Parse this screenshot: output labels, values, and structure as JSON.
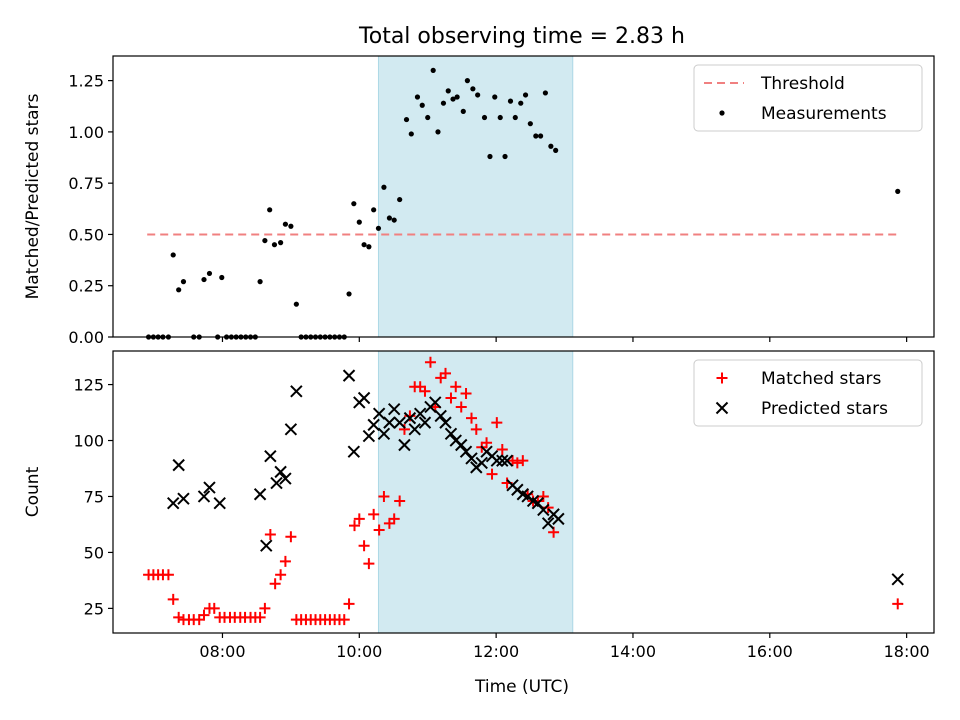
{
  "title": "Total observing time = 2.83 h",
  "chart_data": [
    {
      "type": "scatter",
      "ylabel": "Matched/Predicted stars",
      "ylim": [
        0,
        1.37
      ],
      "xlim": [
        6.4,
        18.4
      ],
      "yticks": [
        0.0,
        0.25,
        0.5,
        0.75,
        1.0,
        1.25
      ],
      "ytick_labels": [
        "0.00",
        "0.25",
        "0.50",
        "0.75",
        "1.00",
        "1.25"
      ],
      "highlight": {
        "x0": 10.28,
        "x1": 13.12,
        "color": "#add8e6"
      },
      "legend": {
        "location": "upper right",
        "entries": [
          "Threshold",
          "Measurements"
        ]
      },
      "threshold": {
        "name": "Threshold",
        "y": 0.5,
        "x0": 6.9,
        "x1": 17.9,
        "color": "#f08080",
        "style": "dashed"
      },
      "series": [
        {
          "name": "Measurements",
          "color": "#000000",
          "marker": "dot",
          "points": [
            [
              6.92,
              0
            ],
            [
              6.99,
              0
            ],
            [
              7.06,
              0
            ],
            [
              7.13,
              0
            ],
            [
              7.21,
              0
            ],
            [
              7.28,
              0.4
            ],
            [
              7.36,
              0.23
            ],
            [
              7.43,
              0.27
            ],
            [
              7.58,
              0
            ],
            [
              7.66,
              0
            ],
            [
              7.73,
              0.28
            ],
            [
              7.81,
              0.31
            ],
            [
              7.93,
              0
            ],
            [
              7.99,
              0.29
            ],
            [
              8.06,
              0
            ],
            [
              8.13,
              0
            ],
            [
              8.2,
              0
            ],
            [
              8.27,
              0
            ],
            [
              8.34,
              0
            ],
            [
              8.41,
              0
            ],
            [
              8.48,
              0
            ],
            [
              8.55,
              0.27
            ],
            [
              8.62,
              0.47
            ],
            [
              8.69,
              0.62
            ],
            [
              8.76,
              0.45
            ],
            [
              8.85,
              0.46
            ],
            [
              8.92,
              0.55
            ],
            [
              9.0,
              0.54
            ],
            [
              9.08,
              0.16
            ],
            [
              9.15,
              0
            ],
            [
              9.22,
              0
            ],
            [
              9.29,
              0
            ],
            [
              9.36,
              0
            ],
            [
              9.43,
              0
            ],
            [
              9.5,
              0
            ],
            [
              9.57,
              0
            ],
            [
              9.64,
              0
            ],
            [
              9.71,
              0
            ],
            [
              9.78,
              0
            ],
            [
              9.85,
              0.21
            ],
            [
              9.92,
              0.65
            ],
            [
              10.0,
              0.56
            ],
            [
              10.07,
              0.45
            ],
            [
              10.14,
              0.44
            ],
            [
              10.21,
              0.62
            ],
            [
              10.28,
              0.53
            ],
            [
              10.36,
              0.73
            ],
            [
              10.44,
              0.58
            ],
            [
              10.51,
              0.57
            ],
            [
              10.59,
              0.67
            ],
            [
              10.69,
              1.06
            ],
            [
              10.76,
              0.99
            ],
            [
              10.85,
              1.17
            ],
            [
              10.92,
              1.13
            ],
            [
              11.0,
              1.07
            ],
            [
              11.08,
              1.3
            ],
            [
              11.15,
              1.0
            ],
            [
              11.23,
              1.14
            ],
            [
              11.3,
              1.2
            ],
            [
              11.37,
              1.16
            ],
            [
              11.43,
              1.17
            ],
            [
              11.52,
              1.1
            ],
            [
              11.58,
              1.25
            ],
            [
              11.66,
              1.21
            ],
            [
              11.73,
              1.18
            ],
            [
              11.83,
              1.07
            ],
            [
              11.91,
              0.88
            ],
            [
              11.98,
              1.17
            ],
            [
              12.06,
              1.07
            ],
            [
              12.13,
              0.88
            ],
            [
              12.21,
              1.15
            ],
            [
              12.28,
              1.07
            ],
            [
              12.36,
              1.14
            ],
            [
              12.43,
              1.18
            ],
            [
              12.5,
              1.04
            ],
            [
              12.58,
              0.98
            ],
            [
              12.65,
              0.98
            ],
            [
              12.72,
              1.19
            ],
            [
              12.8,
              0.93
            ],
            [
              12.87,
              0.91
            ],
            [
              17.87,
              0.71
            ]
          ]
        }
      ]
    },
    {
      "type": "scatter",
      "xlabel": "Time (UTC)",
      "ylabel": "Count",
      "ylim": [
        14,
        140
      ],
      "xlim": [
        6.4,
        18.4
      ],
      "yticks": [
        25,
        50,
        75,
        100,
        125
      ],
      "ytick_labels": [
        "25",
        "50",
        "75",
        "100",
        "125"
      ],
      "xticks": [
        8,
        10,
        12,
        14,
        16,
        18
      ],
      "xtick_labels": [
        "08:00",
        "10:00",
        "12:00",
        "14:00",
        "16:00",
        "18:00"
      ],
      "highlight": {
        "x0": 10.28,
        "x1": 13.12,
        "color": "#add8e6"
      },
      "legend": {
        "location": "upper right",
        "entries": [
          "Matched stars",
          "Predicted stars"
        ]
      },
      "series": [
        {
          "name": "Matched stars",
          "color": "#ff0000",
          "marker": "plus",
          "points": [
            [
              6.92,
              40
            ],
            [
              6.99,
              40
            ],
            [
              7.06,
              40
            ],
            [
              7.13,
              40
            ],
            [
              7.21,
              40
            ],
            [
              7.28,
              29
            ],
            [
              7.36,
              21
            ],
            [
              7.43,
              20
            ],
            [
              7.51,
              20
            ],
            [
              7.58,
              20
            ],
            [
              7.66,
              20
            ],
            [
              7.73,
              22
            ],
            [
              7.81,
              25
            ],
            [
              7.88,
              25
            ],
            [
              7.96,
              21
            ],
            [
              8.03,
              21
            ],
            [
              8.11,
              21
            ],
            [
              8.18,
              21
            ],
            [
              8.26,
              21
            ],
            [
              8.33,
              21
            ],
            [
              8.41,
              21
            ],
            [
              8.48,
              21
            ],
            [
              8.55,
              21
            ],
            [
              8.62,
              25
            ],
            [
              8.7,
              58
            ],
            [
              8.77,
              36
            ],
            [
              8.85,
              40
            ],
            [
              8.92,
              46
            ],
            [
              9.0,
              57
            ],
            [
              9.08,
              20
            ],
            [
              9.15,
              20
            ],
            [
              9.22,
              20
            ],
            [
              9.29,
              20
            ],
            [
              9.36,
              20
            ],
            [
              9.43,
              20
            ],
            [
              9.5,
              20
            ],
            [
              9.57,
              20
            ],
            [
              9.64,
              20
            ],
            [
              9.71,
              20
            ],
            [
              9.78,
              20
            ],
            [
              9.85,
              27
            ],
            [
              9.93,
              62
            ],
            [
              10.0,
              65
            ],
            [
              10.07,
              53
            ],
            [
              10.14,
              45
            ],
            [
              10.21,
              67
            ],
            [
              10.29,
              60
            ],
            [
              10.36,
              75
            ],
            [
              10.44,
              63
            ],
            [
              10.51,
              65
            ],
            [
              10.59,
              73
            ],
            [
              10.66,
              105
            ],
            [
              10.74,
              111
            ],
            [
              10.81,
              124
            ],
            [
              10.89,
              124
            ],
            [
              10.96,
              122
            ],
            [
              11.04,
              135
            ],
            [
              11.11,
              115
            ],
            [
              11.19,
              128
            ],
            [
              11.26,
              130
            ],
            [
              11.34,
              119
            ],
            [
              11.41,
              124
            ],
            [
              11.49,
              115
            ],
            [
              11.56,
              121
            ],
            [
              11.64,
              110
            ],
            [
              11.71,
              105
            ],
            [
              11.79,
              97
            ],
            [
              11.86,
              99
            ],
            [
              11.94,
              85
            ],
            [
              12.01,
              108
            ],
            [
              12.09,
              96
            ],
            [
              12.16,
              81
            ],
            [
              12.24,
              91
            ],
            [
              12.31,
              90
            ],
            [
              12.39,
              91
            ],
            [
              12.46,
              76
            ],
            [
              12.54,
              73
            ],
            [
              12.61,
              73
            ],
            [
              12.69,
              75
            ],
            [
              12.76,
              70
            ],
            [
              12.84,
              59
            ],
            [
              17.87,
              27
            ]
          ]
        },
        {
          "name": "Predicted stars",
          "color": "#000000",
          "marker": "x",
          "points": [
            [
              7.28,
              72
            ],
            [
              7.36,
              89
            ],
            [
              7.43,
              74
            ],
            [
              7.73,
              75
            ],
            [
              7.81,
              79
            ],
            [
              7.96,
              72
            ],
            [
              8.55,
              76
            ],
            [
              8.64,
              53
            ],
            [
              8.7,
              93
            ],
            [
              8.79,
              81
            ],
            [
              8.85,
              86
            ],
            [
              8.92,
              83
            ],
            [
              9.0,
              105
            ],
            [
              9.08,
              122
            ],
            [
              9.85,
              129
            ],
            [
              9.92,
              95
            ],
            [
              10.0,
              117
            ],
            [
              10.07,
              119
            ],
            [
              10.14,
              102
            ],
            [
              10.21,
              107
            ],
            [
              10.29,
              112
            ],
            [
              10.36,
              103
            ],
            [
              10.44,
              108
            ],
            [
              10.51,
              114
            ],
            [
              10.59,
              108
            ],
            [
              10.66,
              98
            ],
            [
              10.74,
              110
            ],
            [
              10.81,
              105
            ],
            [
              10.89,
              112
            ],
            [
              10.96,
              108
            ],
            [
              11.04,
              115
            ],
            [
              11.11,
              117
            ],
            [
              11.19,
              111
            ],
            [
              11.26,
              108
            ],
            [
              11.34,
              103
            ],
            [
              11.41,
              100
            ],
            [
              11.49,
              98
            ],
            [
              11.56,
              95
            ],
            [
              11.64,
              92
            ],
            [
              11.71,
              88
            ],
            [
              11.79,
              90
            ],
            [
              11.86,
              95
            ],
            [
              11.94,
              93
            ],
            [
              12.01,
              91
            ],
            [
              12.09,
              91
            ],
            [
              12.16,
              91
            ],
            [
              12.24,
              80
            ],
            [
              12.31,
              78
            ],
            [
              12.39,
              76
            ],
            [
              12.46,
              75
            ],
            [
              12.54,
              73
            ],
            [
              12.61,
              72
            ],
            [
              12.69,
              69
            ],
            [
              12.76,
              63
            ],
            [
              12.84,
              67
            ],
            [
              12.91,
              65
            ],
            [
              17.87,
              38
            ]
          ]
        }
      ]
    }
  ]
}
